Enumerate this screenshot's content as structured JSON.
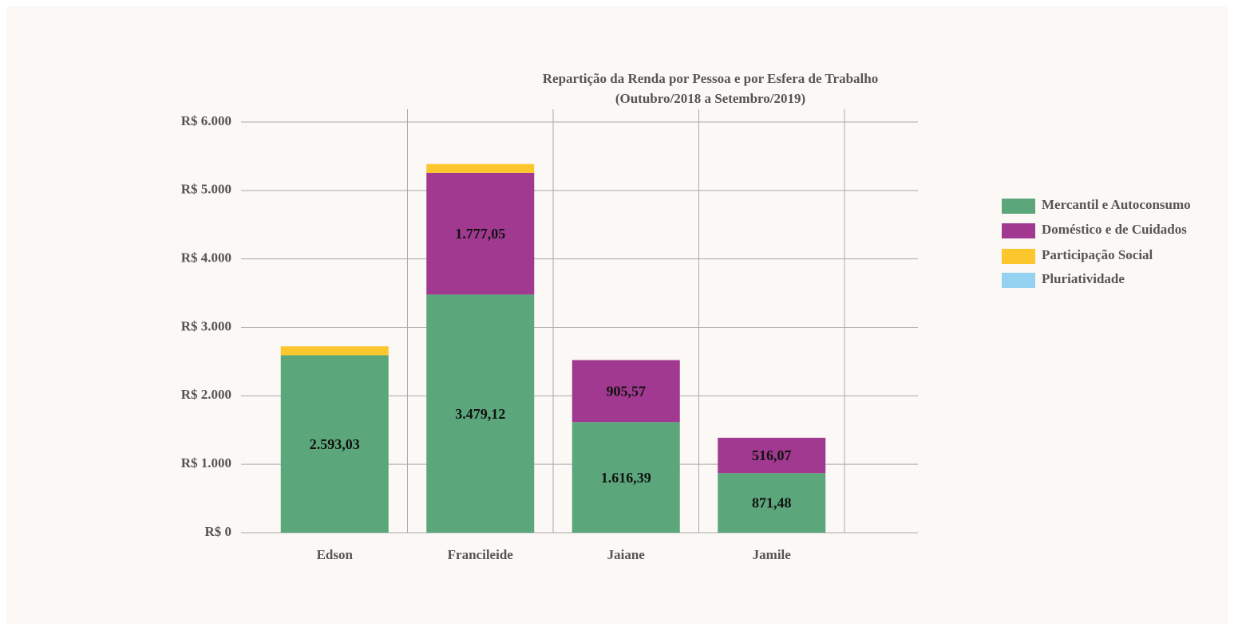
{
  "chart_data": {
    "type": "bar",
    "stacked": true,
    "title": "Repartição da Renda por Pessoa e por Esfera de Trabalho",
    "subtitle": "(Outubro/2018 a Setembro/2019)",
    "categories": [
      "Edson",
      "Francileide",
      "Jaiane",
      "Jamile"
    ],
    "series": [
      {
        "name": "Mercantil e Autoconsumo",
        "color": "#5ba67b",
        "values": [
          2593.03,
          3479.12,
          1616.39,
          871.48
        ],
        "value_labels": [
          "2.593,03",
          "3.479,12",
          "1.616,39",
          "871,48"
        ]
      },
      {
        "name": "Doméstico e de Cuidados",
        "color": "#a0398f",
        "values": [
          0,
          1777.05,
          905.57,
          516.07
        ],
        "value_labels": [
          null,
          "1.777,05",
          "905,57",
          "516,07"
        ]
      },
      {
        "name": "Participação Social",
        "color": "#fcc72c",
        "values": [
          130,
          130,
          0,
          0
        ],
        "value_labels": [
          null,
          null,
          null,
          null
        ]
      },
      {
        "name": "Pluriatividade",
        "color": "#95d1f0",
        "values": [
          0,
          0,
          0,
          0
        ],
        "value_labels": [
          null,
          null,
          null,
          null
        ]
      }
    ],
    "ylim": [
      0,
      6000
    ],
    "yticks": [
      {
        "value": 0,
        "label": "R$ 0"
      },
      {
        "value": 1000,
        "label": "R$ 1.000"
      },
      {
        "value": 2000,
        "label": "R$ 2.000"
      },
      {
        "value": 3000,
        "label": "R$ 3.000"
      },
      {
        "value": 4000,
        "label": "R$ 4.000"
      },
      {
        "value": 5000,
        "label": "R$ 5.000"
      },
      {
        "value": 6000,
        "label": "R$ 6.000"
      }
    ],
    "grid": true,
    "legend": "right"
  }
}
